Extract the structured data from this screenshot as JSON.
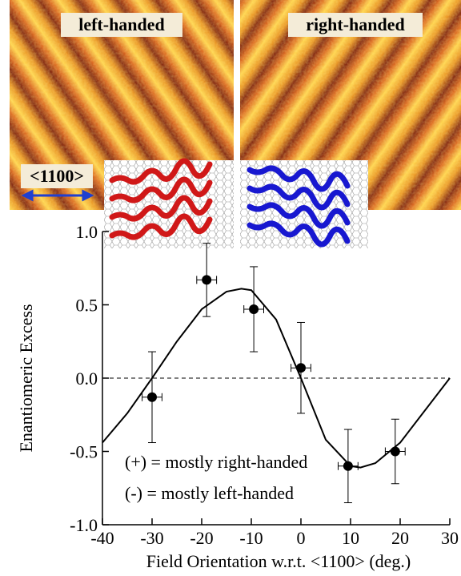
{
  "panels": {
    "left_label": "left-handed",
    "right_label": "right-handed",
    "direction_label": "<1100>"
  },
  "chart_data": {
    "type": "scatter",
    "x_label": "Field Orientation w.r.t. <1100> (deg.)",
    "y_label": "Enantiomeric Excess",
    "annotations": [
      "(+) = mostly right-handed",
      "(-) = mostly left-handed"
    ],
    "xlim": [
      -40,
      30
    ],
    "xticks": [
      -40,
      -30,
      -20,
      -10,
      0,
      10,
      20,
      30
    ],
    "ylim": [
      -1,
      1
    ],
    "yticks": [
      {
        "value": -1,
        "label": "-1.0"
      },
      {
        "value": -0.5,
        "label": "-0.5"
      },
      {
        "value": 0,
        "label": "0.0"
      },
      {
        "value": 0.5,
        "label": "0.5"
      },
      {
        "value": 1,
        "label": "1.0"
      }
    ],
    "hline": 0,
    "series": [
      {
        "color": "#000000",
        "x": [
          -30,
          -19,
          -9.5,
          0,
          9.5,
          19
        ],
        "values": [
          -0.13,
          0.67,
          0.47,
          0.07,
          -0.6,
          -0.5
        ],
        "errors": [
          0.31,
          0.25,
          0.29,
          0.31,
          0.25,
          0.22
        ],
        "x_errors": [
          2,
          2,
          2,
          2,
          2,
          2
        ]
      },
      {
        "color": "#000000",
        "x": [
          -40,
          -35,
          -30,
          -25,
          -20,
          -15,
          -12,
          -10,
          -5,
          0,
          5,
          10,
          12,
          15,
          20,
          25,
          30
        ],
        "values": [
          -0.44,
          -0.24,
          0,
          0.25,
          0.47,
          0.59,
          0.61,
          0.6,
          0.4,
          0,
          -0.42,
          -0.6,
          -0.61,
          -0.58,
          -0.44,
          -0.22,
          0
        ]
      }
    ]
  }
}
